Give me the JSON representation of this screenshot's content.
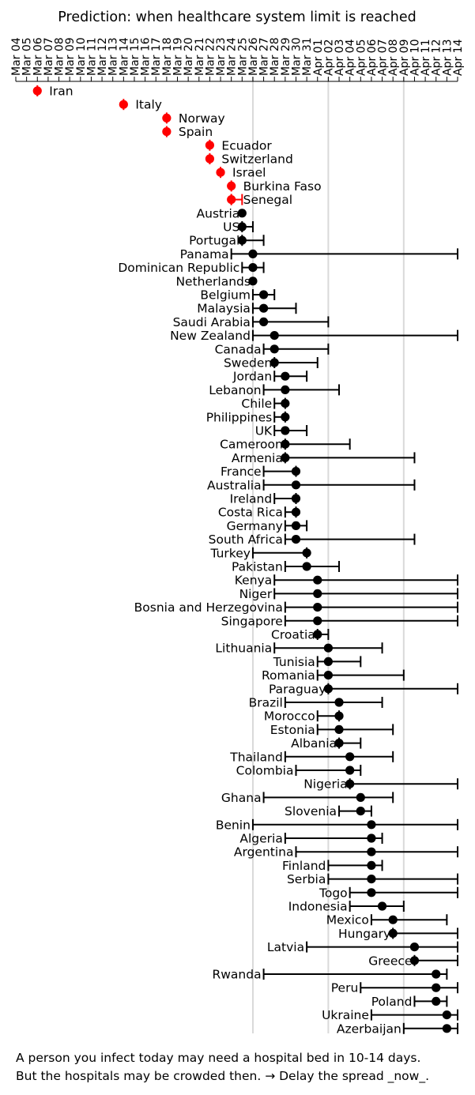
{
  "chart_data": {
    "type": "scatter",
    "title": "Prediction: when healthcare system limit is reached",
    "xlabel": "",
    "ylabel": "",
    "x_ticks": [
      "Mar 04",
      "Mar 05",
      "Mar 06",
      "Mar 07",
      "Mar 08",
      "Mar 09",
      "Mar 10",
      "Mar 11",
      "Mar 12",
      "Mar 13",
      "Mar 14",
      "Mar 15",
      "Mar 16",
      "Mar 17",
      "Mar 18",
      "Mar 19",
      "Mar 20",
      "Mar 21",
      "Mar 22",
      "Mar 23",
      "Mar 24",
      "Mar 25",
      "Mar 26",
      "Mar 27",
      "Mar 28",
      "Mar 29",
      "Mar 30",
      "Mar 31",
      "Apr 01",
      "Apr 02",
      "Apr 03",
      "Apr 04",
      "Apr 05",
      "Apr 06",
      "Apr 07",
      "Apr 08",
      "Apr 09",
      "Apr 10",
      "Apr 11",
      "Apr 12",
      "Apr 13",
      "Apr 14"
    ],
    "xlim": [
      "Mar 04",
      "Apr 14"
    ],
    "vertical_reference_lines": [
      "Mar 26",
      "Apr 02",
      "Apr 09"
    ],
    "grid": false,
    "legend": "none",
    "colors": {
      "already_reached": "#ff0000",
      "predicted": "#000000",
      "reference_line": "#d9d9d9"
    },
    "points": [
      {
        "country": "Iran",
        "date": "Mar 06",
        "low": "Mar 06",
        "high": "Mar 06",
        "reached": true
      },
      {
        "country": "Italy",
        "date": "Mar 14",
        "low": "Mar 14",
        "high": "Mar 14",
        "reached": true
      },
      {
        "country": "Norway",
        "date": "Mar 18",
        "low": "Mar 18",
        "high": "Mar 18",
        "reached": true
      },
      {
        "country": "Spain",
        "date": "Mar 18",
        "low": "Mar 18",
        "high": "Mar 18",
        "reached": true
      },
      {
        "country": "Ecuador",
        "date": "Mar 22",
        "low": "Mar 22",
        "high": "Mar 22",
        "reached": true
      },
      {
        "country": "Switzerland",
        "date": "Mar 22",
        "low": "Mar 22",
        "high": "Mar 22",
        "reached": true
      },
      {
        "country": "Israel",
        "date": "Mar 23",
        "low": "Mar 23",
        "high": "Mar 23",
        "reached": true
      },
      {
        "country": "Burkina Faso",
        "date": "Mar 24",
        "low": "Mar 24",
        "high": "Mar 24",
        "reached": true
      },
      {
        "country": "Senegal",
        "date": "Mar 24",
        "low": "Mar 24",
        "high": "Mar 25",
        "reached": true
      },
      {
        "country": "Austria",
        "date": "Mar 25",
        "low": "Mar 25",
        "high": "Mar 25",
        "reached": false
      },
      {
        "country": "US",
        "date": "Mar 25",
        "low": "Mar 25",
        "high": "Mar 26",
        "reached": false
      },
      {
        "country": "Portugal",
        "date": "Mar 25",
        "low": "Mar 25",
        "high": "Mar 27",
        "reached": false
      },
      {
        "country": "Panama",
        "date": "Mar 26",
        "low": "Mar 24",
        "high": "Apr 14",
        "reached": false
      },
      {
        "country": "Dominican Republic",
        "date": "Mar 26",
        "low": "Mar 25",
        "high": "Mar 27",
        "reached": false
      },
      {
        "country": "Netherlands",
        "date": "Mar 26",
        "low": "Mar 26",
        "high": "Mar 26",
        "reached": false
      },
      {
        "country": "Belgium",
        "date": "Mar 27",
        "low": "Mar 26",
        "high": "Mar 28",
        "reached": false
      },
      {
        "country": "Malaysia",
        "date": "Mar 27",
        "low": "Mar 26",
        "high": "Mar 30",
        "reached": false
      },
      {
        "country": "Saudi Arabia",
        "date": "Mar 27",
        "low": "Mar 26",
        "high": "Apr 02",
        "reached": false
      },
      {
        "country": "New Zealand",
        "date": "Mar 28",
        "low": "Mar 26",
        "high": "Apr 14",
        "reached": false
      },
      {
        "country": "Canada",
        "date": "Mar 28",
        "low": "Mar 27",
        "high": "Apr 02",
        "reached": false
      },
      {
        "country": "Sweden",
        "date": "Mar 28",
        "low": "Mar 28",
        "high": "Apr 01",
        "reached": false
      },
      {
        "country": "Jordan",
        "date": "Mar 29",
        "low": "Mar 28",
        "high": "Mar 31",
        "reached": false
      },
      {
        "country": "Lebanon",
        "date": "Mar 29",
        "low": "Mar 27",
        "high": "Apr 03",
        "reached": false
      },
      {
        "country": "Chile",
        "date": "Mar 29",
        "low": "Mar 28",
        "high": "Mar 29",
        "reached": false
      },
      {
        "country": "Philippines",
        "date": "Mar 29",
        "low": "Mar 28",
        "high": "Mar 29",
        "reached": false
      },
      {
        "country": "UK",
        "date": "Mar 29",
        "low": "Mar 28",
        "high": "Mar 31",
        "reached": false
      },
      {
        "country": "Cameroon",
        "date": "Mar 29",
        "low": "Mar 29",
        "high": "Apr 04",
        "reached": false
      },
      {
        "country": "Armenia",
        "date": "Mar 29",
        "low": "Mar 29",
        "high": "Apr 10",
        "reached": false
      },
      {
        "country": "France",
        "date": "Mar 30",
        "low": "Mar 27",
        "high": "Mar 30",
        "reached": false
      },
      {
        "country": "Australia",
        "date": "Mar 30",
        "low": "Mar 27",
        "high": "Apr 10",
        "reached": false
      },
      {
        "country": "Ireland",
        "date": "Mar 30",
        "low": "Mar 28",
        "high": "Mar 30",
        "reached": false
      },
      {
        "country": "Costa Rica",
        "date": "Mar 30",
        "low": "Mar 29",
        "high": "Mar 30",
        "reached": false
      },
      {
        "country": "Germany",
        "date": "Mar 30",
        "low": "Mar 29",
        "high": "Mar 31",
        "reached": false
      },
      {
        "country": "South Africa",
        "date": "Mar 30",
        "low": "Mar 29",
        "high": "Apr 10",
        "reached": false
      },
      {
        "country": "Turkey",
        "date": "Mar 31",
        "low": "Mar 26",
        "high": "Mar 31",
        "reached": false
      },
      {
        "country": "Pakistan",
        "date": "Mar 31",
        "low": "Mar 29",
        "high": "Apr 03",
        "reached": false
      },
      {
        "country": "Kenya",
        "date": "Apr 01",
        "low": "Mar 28",
        "high": "Apr 14",
        "reached": false
      },
      {
        "country": "Niger",
        "date": "Apr 01",
        "low": "Mar 28",
        "high": "Apr 14",
        "reached": false
      },
      {
        "country": "Bosnia and Herzegovina",
        "date": "Apr 01",
        "low": "Mar 29",
        "high": "Apr 14",
        "reached": false
      },
      {
        "country": "Singapore",
        "date": "Apr 01",
        "low": "Mar 29",
        "high": "Apr 14",
        "reached": false
      },
      {
        "country": "Croatia",
        "date": "Apr 01",
        "low": "Apr 01",
        "high": "Apr 02",
        "reached": false
      },
      {
        "country": "Lithuania",
        "date": "Apr 02",
        "low": "Mar 28",
        "high": "Apr 07",
        "reached": false
      },
      {
        "country": "Tunisia",
        "date": "Apr 02",
        "low": "Apr 01",
        "high": "Apr 05",
        "reached": false
      },
      {
        "country": "Romania",
        "date": "Apr 02",
        "low": "Apr 01",
        "high": "Apr 09",
        "reached": false
      },
      {
        "country": "Paraguay",
        "date": "Apr 02",
        "low": "Apr 02",
        "high": "Apr 14",
        "reached": false
      },
      {
        "country": "Brazil",
        "date": "Apr 03",
        "low": "Mar 29",
        "high": "Apr 07",
        "reached": false
      },
      {
        "country": "Morocco",
        "date": "Apr 03",
        "low": "Apr 01",
        "high": "Apr 03",
        "reached": false
      },
      {
        "country": "Estonia",
        "date": "Apr 03",
        "low": "Apr 01",
        "high": "Apr 08",
        "reached": false
      },
      {
        "country": "Albania",
        "date": "Apr 03",
        "low": "Apr 03",
        "high": "Apr 05",
        "reached": false
      },
      {
        "country": "Thailand",
        "date": "Apr 04",
        "low": "Mar 29",
        "high": "Apr 08",
        "reached": false
      },
      {
        "country": "Colombia",
        "date": "Apr 04",
        "low": "Mar 30",
        "high": "Apr 05",
        "reached": false
      },
      {
        "country": "Nigeria",
        "date": "Apr 04",
        "low": "Apr 04",
        "high": "Apr 14",
        "reached": false
      },
      {
        "country": "Ghana",
        "date": "Apr 05",
        "low": "Mar 27",
        "high": "Apr 08",
        "reached": false
      },
      {
        "country": "Slovenia",
        "date": "Apr 05",
        "low": "Apr 03",
        "high": "Apr 06",
        "reached": false
      },
      {
        "country": "Benin",
        "date": "Apr 06",
        "low": "Mar 26",
        "high": "Apr 14",
        "reached": false
      },
      {
        "country": "Algeria",
        "date": "Apr 06",
        "low": "Mar 29",
        "high": "Apr 07",
        "reached": false
      },
      {
        "country": "Argentina",
        "date": "Apr 06",
        "low": "Mar 30",
        "high": "Apr 14",
        "reached": false
      },
      {
        "country": "Finland",
        "date": "Apr 06",
        "low": "Apr 02",
        "high": "Apr 07",
        "reached": false
      },
      {
        "country": "Serbia",
        "date": "Apr 06",
        "low": "Apr 02",
        "high": "Apr 14",
        "reached": false
      },
      {
        "country": "Togo",
        "date": "Apr 06",
        "low": "Apr 04",
        "high": "Apr 14",
        "reached": false
      },
      {
        "country": "Indonesia",
        "date": "Apr 07",
        "low": "Apr 04",
        "high": "Apr 09",
        "reached": false
      },
      {
        "country": "Mexico",
        "date": "Apr 08",
        "low": "Apr 06",
        "high": "Apr 13",
        "reached": false
      },
      {
        "country": "Hungary",
        "date": "Apr 08",
        "low": "Apr 08",
        "high": "Apr 14",
        "reached": false
      },
      {
        "country": "Latvia",
        "date": "Apr 10",
        "low": "Mar 31",
        "high": "Apr 14",
        "reached": false
      },
      {
        "country": "Greece",
        "date": "Apr 10",
        "low": "Apr 10",
        "high": "Apr 14",
        "reached": false
      },
      {
        "country": "Rwanda",
        "date": "Apr 12",
        "low": "Mar 27",
        "high": "Apr 13",
        "reached": false
      },
      {
        "country": "Peru",
        "date": "Apr 12",
        "low": "Apr 05",
        "high": "Apr 14",
        "reached": false
      },
      {
        "country": "Poland",
        "date": "Apr 12",
        "low": "Apr 10",
        "high": "Apr 13",
        "reached": false
      },
      {
        "country": "Ukraine",
        "date": "Apr 13",
        "low": "Apr 06",
        "high": "Apr 14",
        "reached": false
      },
      {
        "country": "Azerbaijan",
        "date": "Apr 13",
        "low": "Apr 09",
        "high": "Apr 14",
        "reached": false
      }
    ]
  },
  "caption": {
    "line1": "A person you infect today may need a hospital bed in 10-14 days.",
    "line2": "But the hospitals may be crowded then. → Delay the spread _now_."
  }
}
